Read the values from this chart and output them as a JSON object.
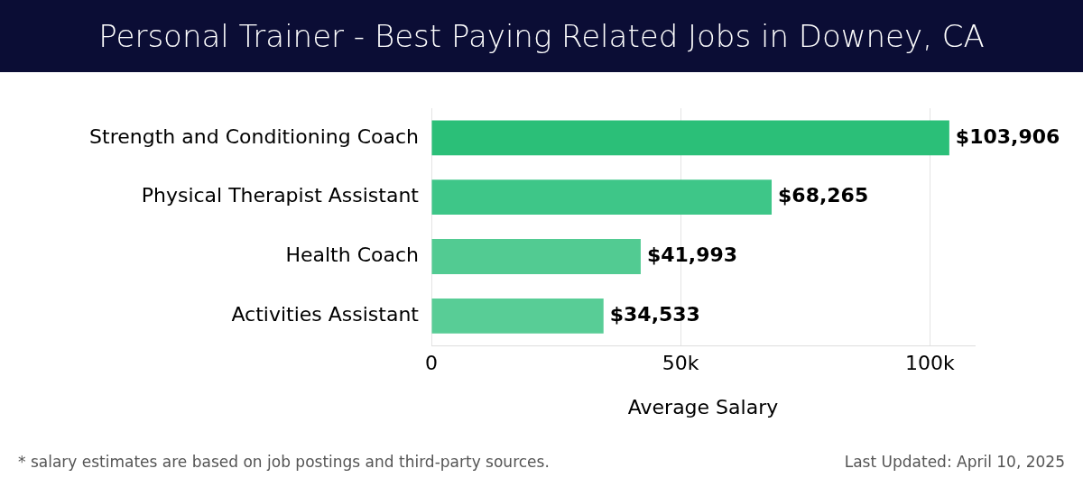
{
  "chart_data": {
    "type": "bar",
    "orientation": "horizontal",
    "title": "Personal Trainer - Best Paying Related Jobs in Downey, CA",
    "xlabel": "Average Salary",
    "categories": [
      "Strength and Conditioning Coach",
      "Physical Therapist Assistant",
      "Health Coach",
      "Activities Assistant"
    ],
    "values": [
      103906,
      68265,
      41993,
      34533
    ],
    "colors": [
      "#2bbf78",
      "#3ec688",
      "#52cb92",
      "#58cd96"
    ],
    "value_labels": [
      "$103,906",
      "$68,265",
      "$41,993",
      "$34,533"
    ],
    "xlim": [
      0,
      109000
    ],
    "xticks": [
      0,
      {
        "value": 50000,
        "label": "50k"
      },
      {
        "value": 100000,
        "label": "100k"
      }
    ],
    "grid": "x",
    "annotations": [
      "* salary estimates are based on job postings and third-party sources.",
      "Last Updated: April 10, 2025"
    ]
  }
}
